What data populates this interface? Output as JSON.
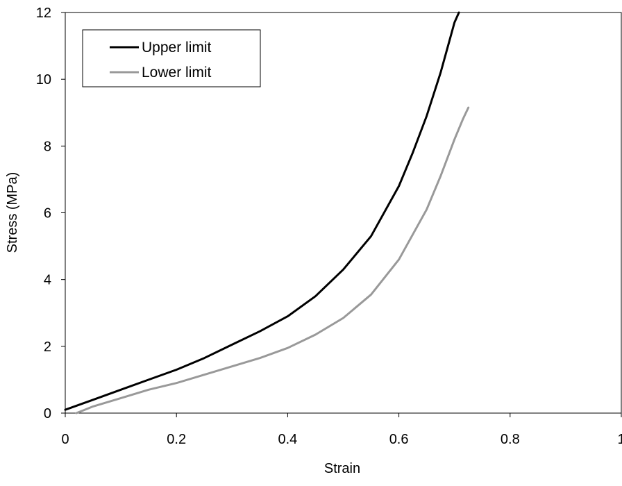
{
  "chart_data": {
    "type": "line",
    "title": "",
    "xlabel": "Strain",
    "ylabel": "Stress (MPa)",
    "xlim": [
      0,
      1
    ],
    "ylim": [
      0,
      12
    ],
    "xticks": [
      0,
      0.2,
      0.4,
      0.6,
      0.8,
      1
    ],
    "xtick_labels": [
      "0",
      "0.2",
      "0.4",
      "0.6",
      "0.8",
      "1"
    ],
    "yticks": [
      0,
      2,
      4,
      6,
      8,
      10,
      12
    ],
    "ytick_labels": [
      "0",
      "2",
      "4",
      "6",
      "8",
      "10",
      "12"
    ],
    "grid": false,
    "legend_position": "top-left",
    "series": [
      {
        "name": "Upper limit",
        "color": "#000000",
        "x": [
          0,
          0.05,
          0.1,
          0.15,
          0.2,
          0.25,
          0.3,
          0.35,
          0.4,
          0.45,
          0.5,
          0.55,
          0.6,
          0.625,
          0.65,
          0.675,
          0.69,
          0.7,
          0.708
        ],
        "y": [
          0.1,
          0.4,
          0.7,
          1.0,
          1.3,
          1.65,
          2.05,
          2.45,
          2.9,
          3.5,
          4.3,
          5.3,
          6.8,
          7.8,
          8.9,
          10.2,
          11.1,
          11.7,
          12.0
        ]
      },
      {
        "name": "Lower limit",
        "color": "#999999",
        "x": [
          0.02,
          0.05,
          0.1,
          0.15,
          0.2,
          0.25,
          0.3,
          0.35,
          0.4,
          0.45,
          0.5,
          0.55,
          0.6,
          0.65,
          0.675,
          0.7,
          0.715,
          0.725
        ],
        "y": [
          0,
          0.2,
          0.45,
          0.7,
          0.9,
          1.15,
          1.4,
          1.65,
          1.95,
          2.35,
          2.85,
          3.55,
          4.6,
          6.1,
          7.1,
          8.2,
          8.8,
          9.15
        ]
      }
    ]
  }
}
